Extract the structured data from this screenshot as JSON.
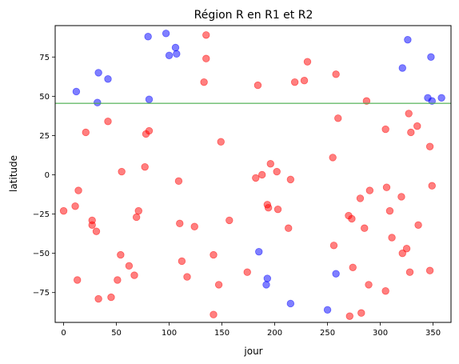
{
  "chart_data": {
    "type": "scatter",
    "title": "Région R en R1 et R2",
    "xlabel": "jour",
    "ylabel": "latitude",
    "xlim": [
      -8,
      367
    ],
    "ylim": [
      -94,
      95
    ],
    "xticks": [
      0,
      50,
      100,
      150,
      200,
      250,
      300,
      350
    ],
    "yticks": [
      -75,
      -50,
      -25,
      0,
      25,
      50,
      75
    ],
    "grid": false,
    "hline": {
      "y": 45.5,
      "color": "#4caf50"
    },
    "series": [
      {
        "color": "#ff0000",
        "points": [
          [
            0,
            -23
          ],
          [
            11,
            -20
          ],
          [
            13,
            -67
          ],
          [
            14,
            -10
          ],
          [
            21,
            27
          ],
          [
            27,
            -29
          ],
          [
            27,
            -32
          ],
          [
            31,
            -36
          ],
          [
            33,
            -79
          ],
          [
            42,
            34
          ],
          [
            45,
            -78
          ],
          [
            51,
            -67
          ],
          [
            54,
            -51
          ],
          [
            55,
            2
          ],
          [
            62,
            -58
          ],
          [
            67,
            -64
          ],
          [
            69,
            -27
          ],
          [
            71,
            -23
          ],
          [
            77,
            5
          ],
          [
            78,
            26
          ],
          [
            81,
            28
          ],
          [
            109,
            -4
          ],
          [
            110,
            -31
          ],
          [
            112,
            -55
          ],
          [
            117,
            -65
          ],
          [
            124,
            -33
          ],
          [
            133,
            59
          ],
          [
            135,
            74
          ],
          [
            135,
            89
          ],
          [
            142,
            -89
          ],
          [
            142,
            -51
          ],
          [
            147,
            -70
          ],
          [
            149,
            21
          ],
          [
            157,
            -29
          ],
          [
            174,
            -62
          ],
          [
            182,
            -2
          ],
          [
            184,
            57
          ],
          [
            188,
            0
          ],
          [
            193,
            -19
          ],
          [
            194,
            -21
          ],
          [
            196,
            7
          ],
          [
            202,
            2
          ],
          [
            203,
            -22
          ],
          [
            213,
            -34
          ],
          [
            215,
            -3
          ],
          [
            219,
            59
          ],
          [
            228,
            60
          ],
          [
            231,
            72
          ],
          [
            255,
            11
          ],
          [
            256,
            -45
          ],
          [
            258,
            64
          ],
          [
            260,
            36
          ],
          [
            270,
            -26
          ],
          [
            271,
            -90
          ],
          [
            273,
            -28
          ],
          [
            274,
            -59
          ],
          [
            281,
            -15
          ],
          [
            282,
            -88
          ],
          [
            285,
            -34
          ],
          [
            287,
            47
          ],
          [
            289,
            -70
          ],
          [
            290,
            -10
          ],
          [
            305,
            29
          ],
          [
            305,
            -74
          ],
          [
            306,
            -8
          ],
          [
            309,
            -23
          ],
          [
            311,
            -40
          ],
          [
            320,
            -14
          ],
          [
            321,
            -50
          ],
          [
            325,
            -47
          ],
          [
            327,
            39
          ],
          [
            328,
            -62
          ],
          [
            329,
            27
          ],
          [
            335,
            31
          ],
          [
            336,
            -32
          ],
          [
            347,
            -61
          ],
          [
            347,
            18
          ],
          [
            349,
            -7
          ]
        ]
      },
      {
        "color": "#0000ff",
        "points": [
          [
            12,
            53
          ],
          [
            32,
            46
          ],
          [
            33,
            65
          ],
          [
            42,
            61
          ],
          [
            80,
            88
          ],
          [
            81,
            48
          ],
          [
            97,
            90
          ],
          [
            100,
            76
          ],
          [
            106,
            81
          ],
          [
            107,
            77
          ],
          [
            185,
            -49
          ],
          [
            192,
            -70
          ],
          [
            193,
            -66
          ],
          [
            215,
            -82
          ],
          [
            250,
            -86
          ],
          [
            258,
            -63
          ],
          [
            321,
            68
          ],
          [
            326,
            86
          ],
          [
            345,
            49
          ],
          [
            348,
            75
          ],
          [
            349,
            47
          ],
          [
            358,
            49
          ]
        ]
      }
    ]
  }
}
